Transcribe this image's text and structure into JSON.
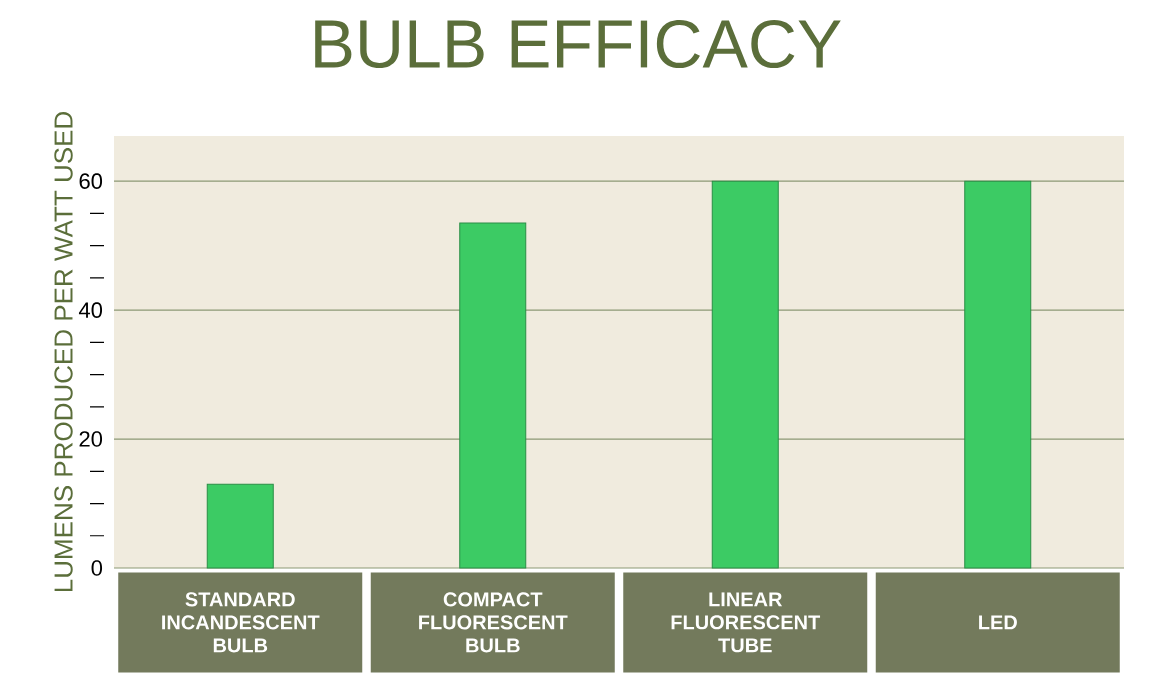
{
  "chart_data": {
    "type": "bar",
    "title": "BULB EFFICACY",
    "ylabel": "LUMENS PRODUCED PER WATT USED",
    "categories": [
      "STANDARD INCANDESCENT BULB",
      "COMPACT FLUORESCENT BULB",
      "LINEAR FLUORESCENT TUBE",
      "LED"
    ],
    "values": [
      13,
      53.5,
      60,
      60
    ],
    "color": "#3ccb64",
    "ylim": [
      0,
      67
    ],
    "yticks": [
      0,
      {
        "value": 5,
        "label": null
      },
      {
        "value": 10,
        "label": null
      },
      {
        "value": 15,
        "label": null
      },
      20,
      {
        "value": 25,
        "label": null
      },
      {
        "value": 30,
        "label": null
      },
      {
        "value": 35,
        "label": null
      },
      40,
      {
        "value": 45,
        "label": null
      },
      {
        "value": 50,
        "label": null
      },
      {
        "value": 55,
        "label": null
      },
      60
    ],
    "grid": "y"
  }
}
